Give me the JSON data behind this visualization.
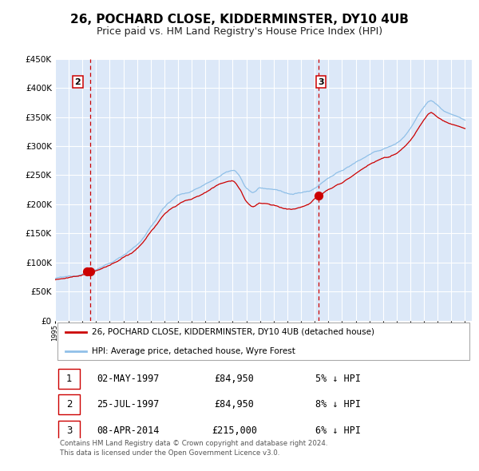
{
  "title": "26, POCHARD CLOSE, KIDDERMINSTER, DY10 4UB",
  "subtitle": "Price paid vs. HM Land Registry's House Price Index (HPI)",
  "property_label": "26, POCHARD CLOSE, KIDDERMINSTER, DY10 4UB (detached house)",
  "hpi_label": "HPI: Average price, detached house, Wyre Forest",
  "transactions": [
    {
      "num": 1,
      "date": "02-MAY-1997",
      "price": 84950,
      "pct": "5%",
      "dir": "↓"
    },
    {
      "num": 2,
      "date": "25-JUL-1997",
      "price": 84950,
      "pct": "8%",
      "dir": "↓"
    },
    {
      "num": 3,
      "date": "08-APR-2014",
      "price": 215000,
      "pct": "6%",
      "dir": "↓"
    }
  ],
  "transaction_years": [
    1997.35,
    1997.56,
    2014.27
  ],
  "transaction_prices": [
    84950,
    84950,
    215000
  ],
  "vline_years": [
    1997.56,
    2014.27
  ],
  "vline_box_labels": [
    "2",
    "3"
  ],
  "footnote": "Contains HM Land Registry data © Crown copyright and database right 2024.\nThis data is licensed under the Open Government Licence v3.0.",
  "ylim": [
    0,
    450000
  ],
  "yticks": [
    0,
    50000,
    100000,
    150000,
    200000,
    250000,
    300000,
    350000,
    400000,
    450000
  ],
  "xlim_start": 1995.0,
  "xlim_end": 2025.5,
  "background_color": "#ffffff",
  "plot_bg_color": "#dce8f8",
  "grid_color": "#ffffff",
  "property_line_color": "#cc0000",
  "hpi_line_color": "#90c0e8",
  "vline_color": "#cc0000",
  "dot_color": "#cc0000",
  "title_fontsize": 11,
  "subtitle_fontsize": 9
}
